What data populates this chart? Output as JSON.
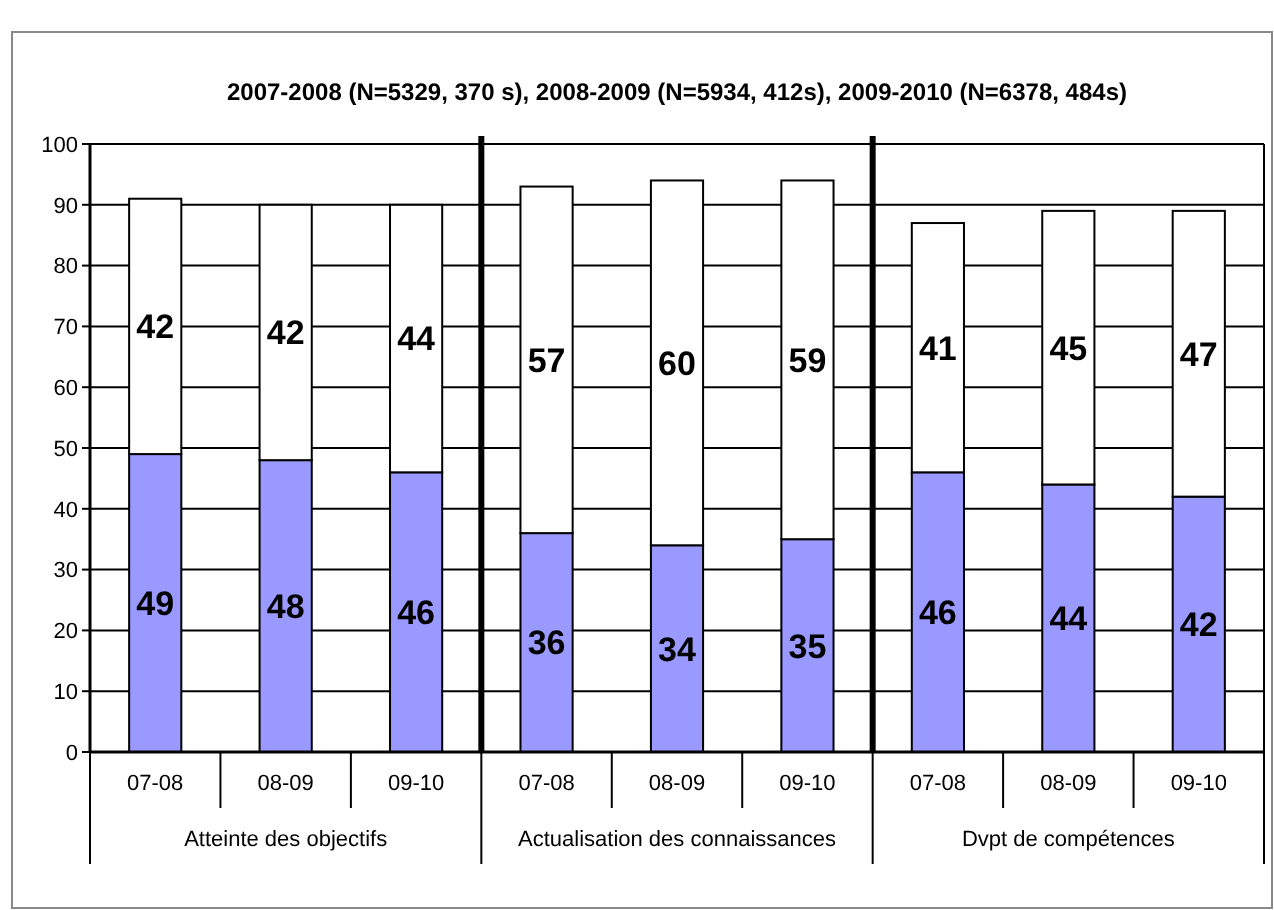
{
  "chart_data": {
    "type": "bar",
    "stacked": true,
    "title": "2007-2008 (N=5329, 370 s), 2008-2009 (N=5934, 412s), 2009-2010 (N=6378, 484s)",
    "categories": [
      "07-08",
      "08-09",
      "09-10",
      "07-08",
      "08-09",
      "09-10",
      "07-08",
      "08-09",
      "09-10"
    ],
    "series": [
      {
        "color": "#9999ff",
        "values": [
          49,
          48,
          46,
          36,
          34,
          35,
          46,
          44,
          42
        ]
      },
      {
        "color": "#ffffff",
        "values": [
          42,
          42,
          44,
          57,
          60,
          59,
          41,
          45,
          47
        ]
      }
    ],
    "annotations": [
      "Atteinte des objectifs",
      "Actualisation des connaissances",
      "Dvpt de compétences"
    ],
    "ylim": [
      0,
      100
    ],
    "yticks": [
      0,
      10,
      20,
      30,
      40,
      50,
      60,
      70,
      80,
      90,
      100
    ],
    "grid": "y",
    "data_labels": true
  }
}
